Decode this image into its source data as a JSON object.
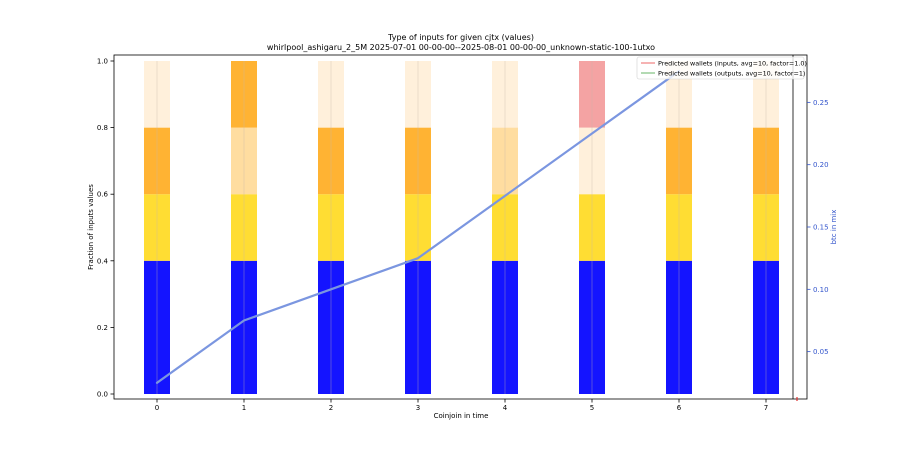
{
  "chart_data": {
    "type": "bar",
    "title": "Type of inputs for given cjtx (values)",
    "subtitle": "whirlpool_ashigaru_2_5M 2025-07-01 00-00-00--2025-08-01 00-00-00_unknown-static-100-1utxo",
    "xlabel": "Coinjoin in time",
    "ylabel": "Fraction of inputs values",
    "y2label": "btc in mix",
    "categories": [
      "0",
      "1",
      "2",
      "3",
      "4",
      "5",
      "6",
      "7"
    ],
    "ylim": [
      0,
      1.0
    ],
    "y2lim": [
      0.012,
      0.288
    ],
    "yticks": [
      "0.0",
      "0.2",
      "0.4",
      "0.6",
      "0.8",
      "1.0"
    ],
    "y2ticks": [
      "0.05",
      "0.10",
      "0.15",
      "0.20",
      "0.25"
    ],
    "grid": false,
    "legend_position": "top-right",
    "stack_series": [
      {
        "color": "#1414ff",
        "values": [
          0.4,
          0.4,
          0.4,
          0.4,
          0.4,
          0.4,
          0.4,
          0.4
        ]
      },
      {
        "color": "#ffdd33",
        "values": [
          0.2,
          0.2,
          0.2,
          0.2,
          0.2,
          0.2,
          0.2,
          0.2
        ]
      },
      {
        "color": "#ffb333",
        "values": [
          0.2,
          0.0,
          0.2,
          0.2,
          0.0,
          0.0,
          0.2,
          0.2
        ]
      },
      {
        "color": "#ffdda0",
        "values": [
          0.0,
          0.2,
          0.0,
          0.0,
          0.2,
          0.0,
          0.0,
          0.0
        ]
      },
      {
        "color": "#fff0db",
        "values": [
          0.2,
          0.0,
          0.2,
          0.2,
          0.2,
          0.2,
          0.2,
          0.2
        ]
      },
      {
        "color": "#ffb333",
        "values": [
          0.0,
          0.2,
          0.0,
          0.0,
          0.0,
          0.0,
          0.0,
          0.0
        ]
      },
      {
        "color": "#f4a3a3",
        "values": [
          0.0,
          0.0,
          0.0,
          0.0,
          0.0,
          0.2,
          0.0,
          0.0
        ]
      }
    ],
    "line": {
      "name": "btc in mix",
      "color": "#7b96e0",
      "x": [
        0,
        1,
        2,
        3,
        4,
        5,
        6
      ],
      "y": [
        0.025,
        0.075,
        0.1,
        0.125,
        0.175,
        0.225,
        0.275
      ]
    },
    "legend": [
      {
        "label": "Predicted wallets (inputs, avg=10, factor=1.0)",
        "color": "#f08080"
      },
      {
        "label": "Predicted wallets (outputs, avg=10, factor=1)",
        "color": "#80c080"
      }
    ]
  }
}
